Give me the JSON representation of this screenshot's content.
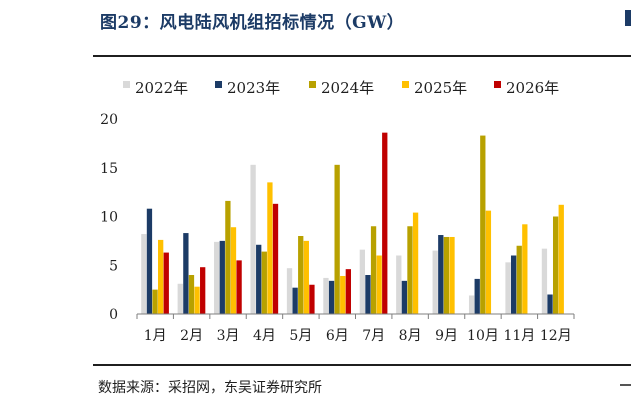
{
  "figure": {
    "title": "图29：风电陆风机组招标情况（GW）",
    "source": "数据来源：采招网，东吴证券研究所"
  },
  "chart_data": {
    "type": "bar",
    "title": "图29：风电陆风机组招标情况（GW）",
    "xlabel": "",
    "ylabel": "",
    "ylim": [
      0,
      20
    ],
    "yticks": [
      0,
      5,
      10,
      15,
      20
    ],
    "grid": false,
    "legend_position": "top",
    "categories": [
      "1月",
      "2月",
      "3月",
      "4月",
      "5月",
      "6月",
      "7月",
      "8月",
      "9月",
      "10月",
      "11月",
      "12月"
    ],
    "series": [
      {
        "name": "2022年",
        "color": "#d9d9d9",
        "values": [
          8.2,
          3.1,
          7.4,
          15.3,
          4.7,
          3.7,
          6.6,
          6.0,
          6.5,
          1.9,
          5.3,
          6.7
        ]
      },
      {
        "name": "2023年",
        "color": "#1c3b66",
        "values": [
          10.8,
          8.3,
          7.5,
          7.1,
          2.7,
          3.4,
          4.0,
          3.4,
          8.1,
          3.6,
          6.0,
          2.0
        ]
      },
      {
        "name": "2024年",
        "color": "#b8a100",
        "values": [
          2.5,
          4.0,
          11.6,
          6.4,
          8.0,
          15.3,
          9.0,
          9.0,
          7.9,
          18.3,
          7.0,
          10.0
        ]
      },
      {
        "name": "2025年",
        "color": "#ffc000",
        "values": [
          7.6,
          2.8,
          8.9,
          13.5,
          7.5,
          3.9,
          6.0,
          10.4,
          7.9,
          10.6,
          9.2,
          11.2
        ]
      },
      {
        "name": "2026年",
        "color": "#c00000",
        "values": [
          6.3,
          4.8,
          5.5,
          11.3,
          3.0,
          4.6,
          18.6,
          null,
          null,
          null,
          null,
          null
        ]
      }
    ]
  }
}
